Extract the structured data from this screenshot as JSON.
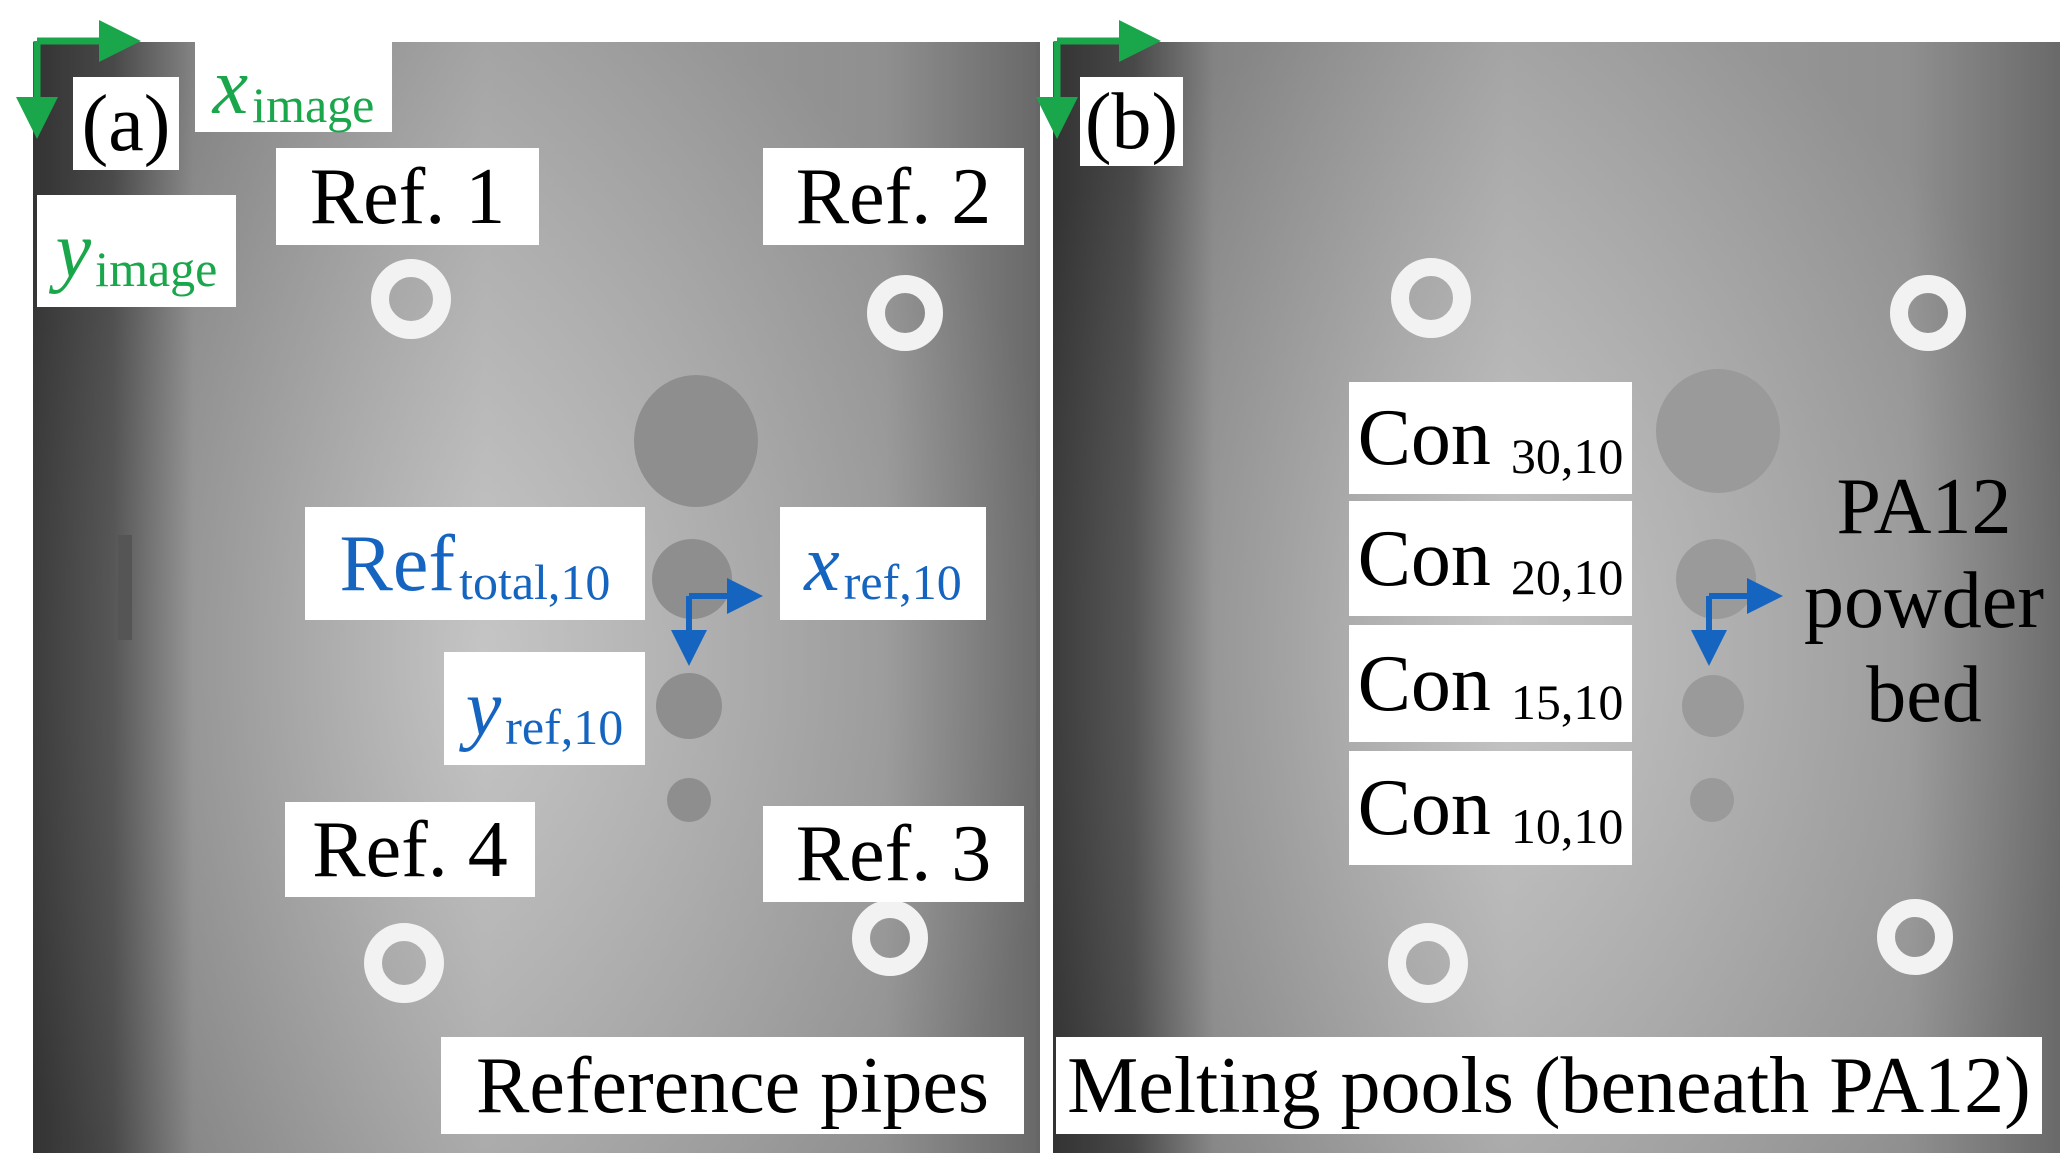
{
  "panel_a": {
    "tag": "(a)",
    "x_axis": {
      "var": "x",
      "sub": "image"
    },
    "y_axis": {
      "var": "y",
      "sub": "image"
    },
    "refs": [
      "Ref. 1",
      "Ref. 2",
      "Ref. 3",
      "Ref. 4"
    ],
    "ref_total": {
      "main": "Ref",
      "sub": "total,10"
    },
    "x_ref": {
      "var": "x",
      "sub": "ref,10"
    },
    "y_ref": {
      "var": "y",
      "sub": "ref,10"
    },
    "caption": "Reference pipes"
  },
  "panel_b": {
    "tag": "(b)",
    "cons": [
      {
        "main": "Con",
        "sub": "30,10"
      },
      {
        "main": "Con",
        "sub": "20,10"
      },
      {
        "main": "Con",
        "sub": "15,10"
      },
      {
        "main": "Con",
        "sub": "10,10"
      }
    ],
    "material": [
      "PA12",
      "powder",
      "bed"
    ],
    "caption": "Melting pools (beneath PA12)"
  },
  "colors": {
    "image_axes": "#1aa64b",
    "ref_axes": "#1565c0"
  }
}
